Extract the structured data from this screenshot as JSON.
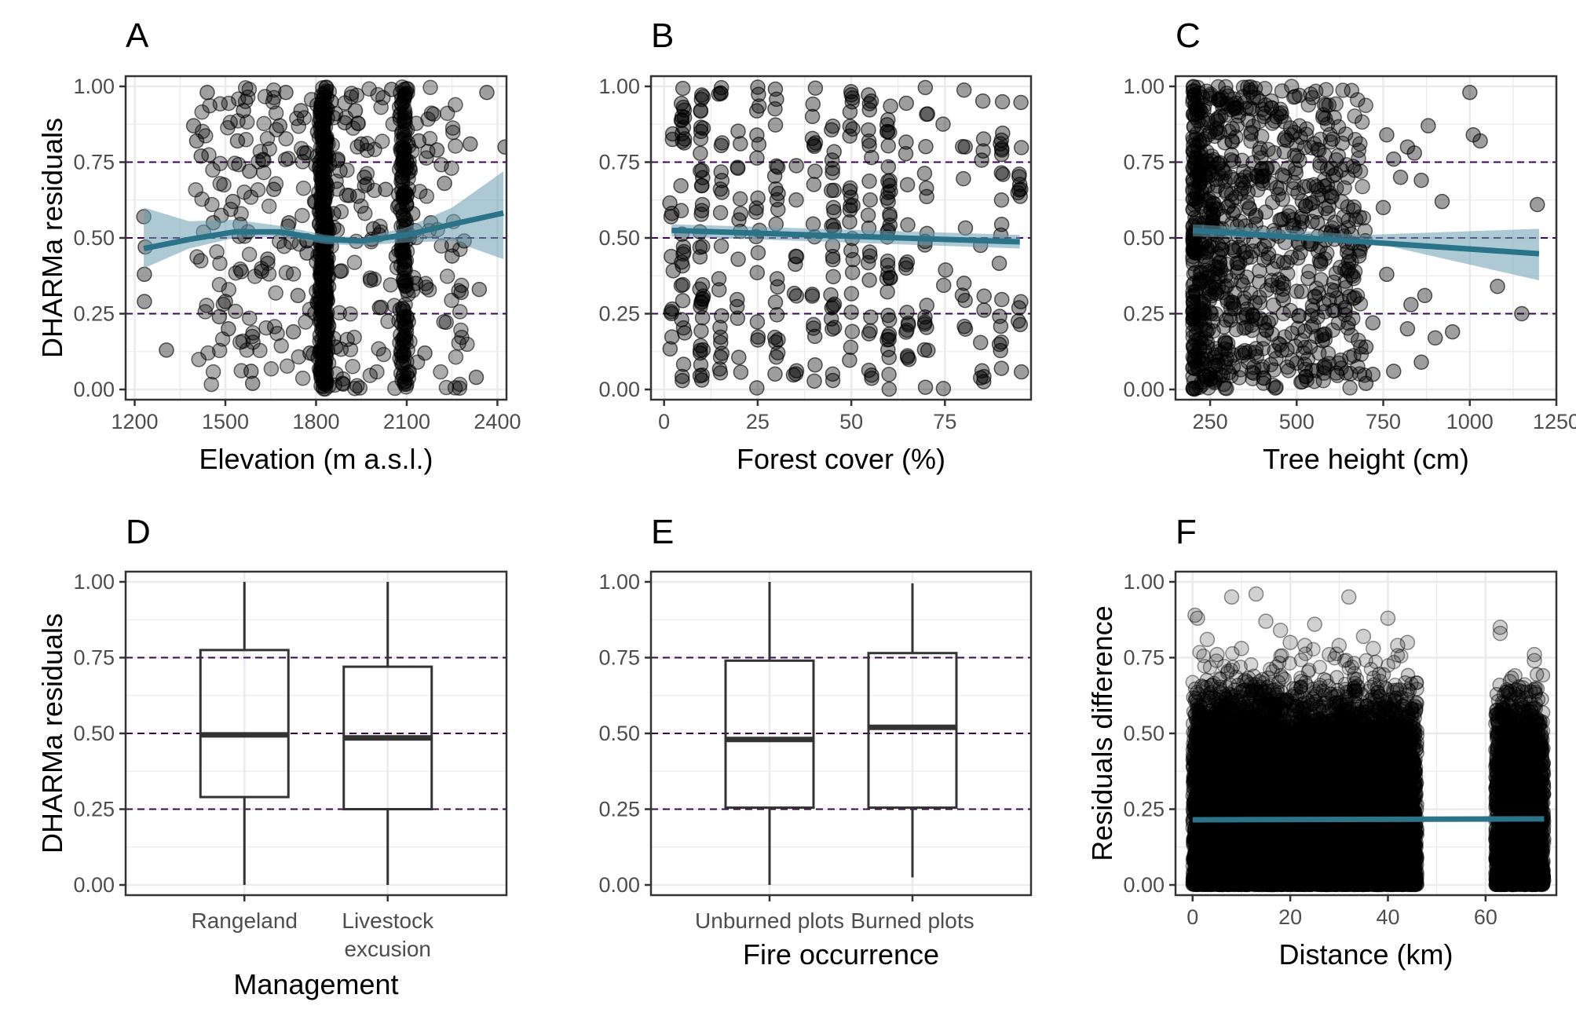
{
  "colors": {
    "points": "#000000",
    "smooth_line": "#2a7388",
    "ribbon": "#6a9fb0",
    "reference_line": "#3b0a4f",
    "grid": "#ebebeb",
    "panel_border": "#333333"
  },
  "chart_data": [
    {
      "panel": "A",
      "type": "scatter",
      "xlabel": "Elevation (m a.s.l.)",
      "ylabel": "DHARMa residuals",
      "xlim": [
        1170,
        2430
      ],
      "ylim": [
        0,
        1
      ],
      "xticks": [
        1200,
        1500,
        1800,
        2100,
        2400
      ],
      "xtick_labels": [
        "1200",
        "1500",
        "1800",
        "2100",
        "2400"
      ],
      "yticks": [
        0,
        0.25,
        0.5,
        0.75,
        1
      ],
      "ytick_labels": [
        "0.00",
        "0.25",
        "0.50",
        "0.75",
        "1.00"
      ],
      "reference_lines": [
        0.25,
        0.5,
        0.75
      ],
      "points_sample": [
        [
          1230,
          0.57
        ],
        [
          1232,
          0.38
        ],
        [
          1232,
          0.29
        ],
        [
          1235,
          0.47
        ],
        [
          1305,
          0.13
        ],
        [
          1395,
          0.87
        ],
        [
          1405,
          0.82
        ],
        [
          1440,
          0.98
        ],
        [
          1420,
          0.77
        ],
        [
          1460,
          0.55
        ],
        [
          1480,
          0.24
        ],
        [
          1500,
          0.29
        ],
        [
          1510,
          0.2
        ],
        [
          1525,
          0.62
        ],
        [
          1540,
          0.82
        ],
        [
          1560,
          0.92
        ],
        [
          1575,
          0.52
        ],
        [
          1580,
          0.72
        ],
        [
          1585,
          0.06
        ],
        [
          1590,
          0.02
        ],
        [
          1620,
          0.39
        ],
        [
          1640,
          0.43
        ],
        [
          1660,
          0.66
        ],
        [
          1680,
          0.87
        ],
        [
          1700,
          0.98
        ],
        [
          1710,
          0.55
        ],
        [
          1725,
          0.19
        ],
        [
          1740,
          0.31
        ],
        [
          1750,
          0.92
        ],
        [
          1760,
          0.78
        ],
        [
          1770,
          0.45
        ],
        [
          1780,
          0.12
        ],
        [
          1795,
          0.62
        ],
        [
          1805,
          0.85
        ],
        [
          1812,
          0.33
        ],
        [
          1820,
          0.05
        ],
        [
          1828,
          0.71
        ],
        [
          1835,
          0.49
        ],
        [
          1842,
          0.21
        ],
        [
          1850,
          0.95
        ],
        [
          1858,
          0.58
        ],
        [
          1865,
          0.14
        ],
        [
          1872,
          0.76
        ],
        [
          1880,
          0.39
        ],
        [
          1888,
          0.02
        ],
        [
          1895,
          0.88
        ],
        [
          1910,
          0.64
        ],
        [
          1930,
          0.92
        ],
        [
          1950,
          0.81
        ],
        [
          1960,
          0.7
        ],
        [
          1980,
          0.36
        ],
        [
          1990,
          0.53
        ],
        [
          2010,
          0.27
        ],
        [
          2030,
          0.66
        ],
        [
          2050,
          0.99
        ],
        [
          2065,
          0.44
        ],
        [
          2080,
          0.91
        ],
        [
          2090,
          0.12
        ],
        [
          2100,
          0.05
        ],
        [
          2110,
          0.73
        ],
        [
          2120,
          0.58
        ],
        [
          2130,
          0.35
        ],
        [
          2140,
          0.82
        ],
        [
          2160,
          0.12
        ],
        [
          2180,
          0.55
        ],
        [
          2200,
          0.79
        ],
        [
          2225,
          0.68
        ],
        [
          2250,
          0.44
        ],
        [
          2280,
          0.32
        ],
        [
          2290,
          0.49
        ],
        [
          2310,
          0.81
        ],
        [
          2330,
          0.04
        ],
        [
          2340,
          0.33
        ],
        [
          2365,
          0.98
        ],
        [
          2425,
          0.8
        ]
      ],
      "dense_columns": [
        [
          1825,
          60
        ],
        [
          2090,
          30
        ]
      ],
      "smooth": {
        "x": [
          1230,
          1380,
          1530,
          1680,
          1830,
          1950,
          2100,
          2250,
          2420
        ],
        "y": [
          0.465,
          0.495,
          0.52,
          0.52,
          0.495,
          0.49,
          0.51,
          0.545,
          0.582
        ]
      },
      "ribbon": {
        "x": [
          1230,
          1380,
          1530,
          1680,
          1830,
          1950,
          2100,
          2250,
          2420
        ],
        "lower": [
          0.4,
          0.465,
          0.5,
          0.505,
          0.48,
          0.475,
          0.485,
          0.49,
          0.43
        ],
        "upper": [
          0.6,
          0.555,
          0.56,
          0.54,
          0.51,
          0.5,
          0.535,
          0.6,
          0.72
        ]
      }
    },
    {
      "panel": "B",
      "type": "scatter",
      "xlabel": "Forest cover (%)",
      "ylabel": "",
      "xlim": [
        -3.5,
        98
      ],
      "ylim": [
        0,
        1
      ],
      "xticks": [
        0,
        25,
        50,
        75
      ],
      "xtick_labels": [
        "0",
        "25",
        "50",
        "75"
      ],
      "yticks": [
        0,
        0.25,
        0.5,
        0.75,
        1
      ],
      "ytick_labels": [
        "0.00",
        "0.25",
        "0.50",
        "0.75",
        "1.00"
      ],
      "reference_lines": [
        0.25,
        0.5,
        0.75
      ],
      "columns": [
        2,
        5,
        10,
        15,
        20,
        25,
        30,
        35,
        40,
        45,
        50,
        55,
        60,
        65,
        70,
        75,
        80,
        85,
        90,
        95
      ],
      "column_density": [
        12,
        30,
        40,
        22,
        14,
        18,
        22,
        10,
        18,
        26,
        24,
        22,
        38,
        16,
        18,
        4,
        10,
        12,
        20,
        14
      ],
      "smooth": {
        "x": [
          2,
          95
        ],
        "y": [
          0.525,
          0.487
        ]
      },
      "ribbon": {
        "x": [
          2,
          95
        ],
        "lower": [
          0.505,
          0.465
        ],
        "upper": [
          0.545,
          0.51
        ]
      }
    },
    {
      "panel": "C",
      "type": "scatter",
      "xlabel": "Tree height (cm)",
      "ylabel": "",
      "xlim": [
        150,
        1250
      ],
      "ylim": [
        0,
        1
      ],
      "xticks": [
        250,
        500,
        750,
        1000,
        1250
      ],
      "xtick_labels": [
        "250",
        "500",
        "750",
        "1000",
        "1250"
      ],
      "yticks": [
        0,
        0.25,
        0.5,
        0.75,
        1
      ],
      "ytick_labels": [
        "0.00",
        "0.25",
        "0.50",
        "0.75",
        "1.00"
      ],
      "reference_lines": [
        0.25,
        0.5,
        0.75
      ],
      "points_sample": [
        [
          1000,
          0.98
        ],
        [
          1010,
          0.84
        ],
        [
          1030,
          0.82
        ],
        [
          1080,
          0.34
        ],
        [
          1150,
          0.25
        ],
        [
          1195,
          0.61
        ],
        [
          920,
          0.62
        ],
        [
          900,
          0.17
        ],
        [
          860,
          0.69
        ],
        [
          840,
          0.78
        ],
        [
          830,
          0.28
        ],
        [
          820,
          0.8
        ],
        [
          800,
          0.7
        ],
        [
          780,
          0.76
        ],
        [
          760,
          0.84
        ],
        [
          750,
          0.6
        ],
        [
          720,
          0.22
        ],
        [
          700,
          0.14
        ],
        [
          680,
          0.44
        ],
        [
          650,
          0.42
        ],
        [
          630,
          0.52
        ],
        [
          600,
          0.73
        ],
        [
          580,
          0.67
        ],
        [
          560,
          0.55
        ],
        [
          540,
          0.48
        ],
        [
          720,
          0.05
        ],
        [
          780,
          0.06
        ],
        [
          860,
          0.09
        ],
        [
          820,
          0.2
        ],
        [
          700,
          0.02
        ],
        [
          880,
          0.87
        ],
        [
          950,
          0.19
        ],
        [
          870,
          0.31
        ],
        [
          760,
          0.38
        ]
      ],
      "dense_range": [
        200,
        700
      ],
      "smooth": {
        "x": [
          200,
          1200
        ],
        "y": [
          0.525,
          0.448
        ]
      },
      "ribbon": {
        "x": [
          200,
          700,
          1200
        ],
        "lower": [
          0.505,
          0.49,
          0.36
        ],
        "upper": [
          0.545,
          0.51,
          0.53
        ]
      }
    },
    {
      "panel": "D",
      "type": "boxplot",
      "xlabel": "Management",
      "ylabel": "DHARMa residuals",
      "ylim": [
        0,
        1
      ],
      "yticks": [
        0,
        0.25,
        0.5,
        0.75,
        1
      ],
      "ytick_labels": [
        "0.00",
        "0.25",
        "0.50",
        "0.75",
        "1.00"
      ],
      "reference_lines": [
        0.25,
        0.5,
        0.75
      ],
      "categories": [
        [
          "Rangeland"
        ],
        [
          "Livestock",
          "excusion"
        ]
      ],
      "boxes": [
        {
          "min": 0.0,
          "q1": 0.29,
          "median": 0.495,
          "q3": 0.775,
          "max": 1.0
        },
        {
          "min": 0.0,
          "q1": 0.25,
          "median": 0.485,
          "q3": 0.72,
          "max": 1.0
        }
      ]
    },
    {
      "panel": "E",
      "type": "boxplot",
      "xlabel": "Fire occurrence",
      "ylabel": "",
      "ylim": [
        0,
        1
      ],
      "yticks": [
        0,
        0.25,
        0.5,
        0.75,
        1
      ],
      "ytick_labels": [
        "0.00",
        "0.25",
        "0.50",
        "0.75",
        "1.00"
      ],
      "reference_lines": [
        0.25,
        0.5,
        0.75
      ],
      "categories": [
        [
          "Unburned plots"
        ],
        [
          "Burned plots"
        ]
      ],
      "boxes": [
        {
          "min": 0.0,
          "q1": 0.255,
          "median": 0.48,
          "q3": 0.74,
          "max": 1.0
        },
        {
          "min": 0.025,
          "q1": 0.255,
          "median": 0.52,
          "q3": 0.765,
          "max": 0.995
        }
      ]
    },
    {
      "panel": "F",
      "type": "scatter",
      "xlabel": "Distance (km)",
      "ylabel": "Residuals difference",
      "xlim": [
        -3.5,
        74.5
      ],
      "ylim": [
        0,
        1
      ],
      "xticks": [
        0,
        20,
        40,
        60
      ],
      "xtick_labels": [
        "0",
        "20",
        "40",
        "60"
      ],
      "yticks": [
        0,
        0.25,
        0.5,
        0.75,
        1
      ],
      "ytick_labels": [
        "0.00",
        "0.25",
        "0.50",
        "0.75",
        "1.00"
      ],
      "clusters": [
        [
          0,
          46
        ],
        [
          62,
          72
        ]
      ],
      "points_sample": [
        [
          0.5,
          0.89
        ],
        [
          1,
          0.88
        ],
        [
          3,
          0.81
        ],
        [
          5,
          0.76
        ],
        [
          8,
          0.95
        ],
        [
          10,
          0.78
        ],
        [
          13,
          0.96
        ],
        [
          15,
          0.87
        ],
        [
          18,
          0.84
        ],
        [
          20,
          0.8
        ],
        [
          23,
          0.79
        ],
        [
          25,
          0.86
        ],
        [
          28,
          0.76
        ],
        [
          30,
          0.79
        ],
        [
          32,
          0.95
        ],
        [
          35,
          0.82
        ],
        [
          37,
          0.78
        ],
        [
          40,
          0.88
        ],
        [
          42,
          0.79
        ],
        [
          44,
          0.8
        ],
        [
          63,
          0.85
        ],
        [
          63,
          0.83
        ],
        [
          66,
          0.69
        ],
        [
          70,
          0.76
        ],
        [
          70,
          0.74
        ],
        [
          68,
          0.66
        ]
      ],
      "smooth": {
        "x": [
          0,
          72
        ],
        "y": [
          0.215,
          0.218
        ]
      }
    }
  ]
}
